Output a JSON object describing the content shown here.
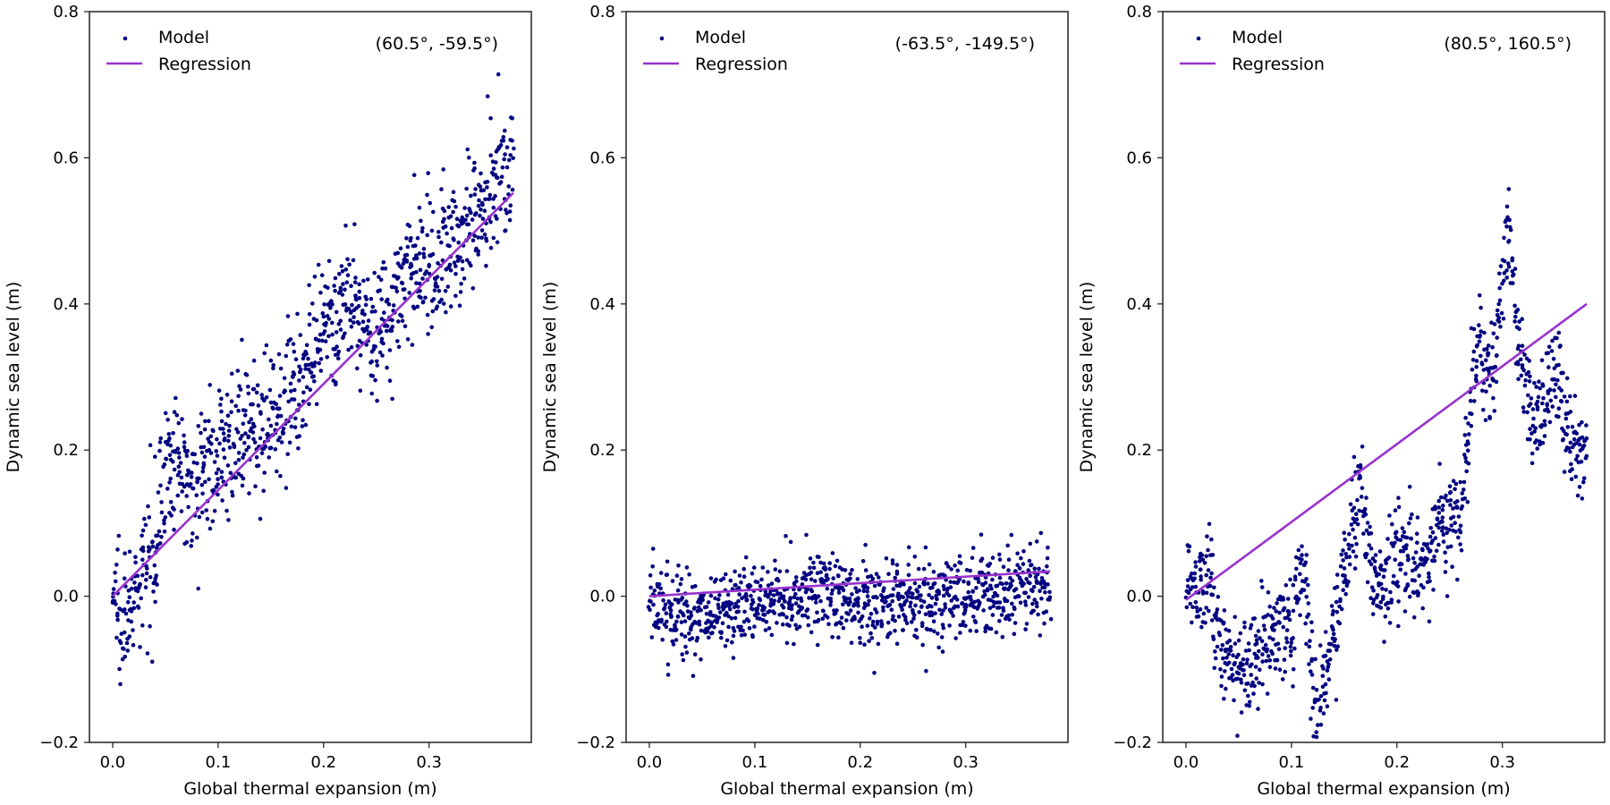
{
  "figure": {
    "colors": {
      "model": "#000080",
      "regression": "#9932CC",
      "axes": "#222222"
    }
  },
  "chart_data": [
    {
      "type": "scatter",
      "title": "",
      "annotation": "(60.5°, -59.5°)",
      "xlabel": "Global thermal expansion (m)",
      "ylabel": "Dynamic sea level (m)",
      "xlim": [
        -0.022,
        0.397
      ],
      "ylim": [
        -0.2,
        0.8
      ],
      "xticks": [
        0.0,
        0.1,
        0.2,
        0.3
      ],
      "xtick_labels": [
        "0.0",
        "0.1",
        "0.2",
        "0.3"
      ],
      "yticks": [
        -0.2,
        0.0,
        0.2,
        0.4,
        0.6,
        0.8
      ],
      "ytick_labels": [
        "−0.2",
        "0.0",
        "0.2",
        "0.4",
        "0.6",
        "0.8"
      ],
      "grid": false,
      "legend": {
        "position": "top-left",
        "entries": [
          "Model",
          "Regression"
        ]
      },
      "series": [
        {
          "name": "Model",
          "kind": "points",
          "n_points": 1000,
          "x_range": [
            0.0,
            0.38
          ],
          "trend": [
            [
              0.0,
              0.0
            ],
            [
              0.02,
              -0.02
            ],
            [
              0.04,
              0.08
            ],
            [
              0.05,
              0.18
            ],
            [
              0.08,
              0.16
            ],
            [
              0.1,
              0.2
            ],
            [
              0.14,
              0.23
            ],
            [
              0.18,
              0.3
            ],
            [
              0.22,
              0.4
            ],
            [
              0.25,
              0.36
            ],
            [
              0.28,
              0.44
            ],
            [
              0.32,
              0.47
            ],
            [
              0.35,
              0.54
            ],
            [
              0.38,
              0.6
            ]
          ],
          "spread": 0.045
        },
        {
          "name": "Regression",
          "kind": "line",
          "x": [
            0.0,
            0.38
          ],
          "y": [
            0.0,
            0.552
          ]
        }
      ]
    },
    {
      "type": "scatter",
      "title": "",
      "annotation": "(-63.5°, -149.5°)",
      "xlabel": "Global thermal expansion (m)",
      "ylabel": "Dynamic sea level (m)",
      "xlim": [
        -0.022,
        0.397
      ],
      "ylim": [
        -0.2,
        0.8
      ],
      "xticks": [
        0.0,
        0.1,
        0.2,
        0.3
      ],
      "xtick_labels": [
        "0.0",
        "0.1",
        "0.2",
        "0.3"
      ],
      "yticks": [
        -0.2,
        0.0,
        0.2,
        0.4,
        0.6,
        0.8
      ],
      "ytick_labels": [
        "−0.2",
        "0.0",
        "0.2",
        "0.4",
        "0.6",
        "0.8"
      ],
      "grid": false,
      "legend": {
        "position": "top-left",
        "entries": [
          "Model",
          "Regression"
        ]
      },
      "series": [
        {
          "name": "Model",
          "kind": "points",
          "n_points": 1000,
          "x_range": [
            0.0,
            0.38
          ],
          "trend": [
            [
              0.0,
              -0.01
            ],
            [
              0.05,
              -0.03
            ],
            [
              0.1,
              -0.01
            ],
            [
              0.15,
              0.01
            ],
            [
              0.2,
              -0.01
            ],
            [
              0.25,
              -0.01
            ],
            [
              0.3,
              0.0
            ],
            [
              0.35,
              0.01
            ],
            [
              0.38,
              0.02
            ]
          ],
          "spread": 0.03
        },
        {
          "name": "Regression",
          "kind": "line",
          "x": [
            0.0,
            0.38
          ],
          "y": [
            0.0,
            0.034
          ]
        }
      ]
    },
    {
      "type": "scatter",
      "title": "",
      "annotation": "(80.5°, 160.5°)",
      "xlabel": "Global thermal expansion (m)",
      "ylabel": "Dynamic sea level (m)",
      "xlim": [
        -0.022,
        0.397
      ],
      "ylim": [
        -0.2,
        0.8
      ],
      "xticks": [
        0.0,
        0.1,
        0.2,
        0.3
      ],
      "xtick_labels": [
        "0.0",
        "0.1",
        "0.2",
        "0.3"
      ],
      "yticks": [
        -0.2,
        0.0,
        0.2,
        0.4,
        0.6,
        0.8
      ],
      "ytick_labels": [
        "−0.2",
        "0.0",
        "0.2",
        "0.4",
        "0.6",
        "0.8"
      ],
      "grid": false,
      "legend": {
        "position": "top-left",
        "entries": [
          "Model",
          "Regression"
        ]
      },
      "series": [
        {
          "name": "Model",
          "kind": "points",
          "n_points": 1000,
          "x_range": [
            0.0,
            0.38
          ],
          "trend": [
            [
              0.0,
              0.02
            ],
            [
              0.02,
              0.03
            ],
            [
              0.035,
              -0.08
            ],
            [
              0.06,
              -0.1
            ],
            [
              0.08,
              -0.05
            ],
            [
              0.1,
              -0.05
            ],
            [
              0.11,
              0.05
            ],
            [
              0.125,
              -0.17
            ],
            [
              0.14,
              -0.05
            ],
            [
              0.15,
              0.05
            ],
            [
              0.165,
              0.15
            ],
            [
              0.18,
              0.0
            ],
            [
              0.2,
              0.06
            ],
            [
              0.225,
              0.03
            ],
            [
              0.24,
              0.1
            ],
            [
              0.26,
              0.1
            ],
            [
              0.275,
              0.35
            ],
            [
              0.29,
              0.3
            ],
            [
              0.305,
              0.5
            ],
            [
              0.315,
              0.35
            ],
            [
              0.33,
              0.22
            ],
            [
              0.35,
              0.3
            ],
            [
              0.37,
              0.19
            ],
            [
              0.38,
              0.2
            ]
          ],
          "spread": 0.035
        },
        {
          "name": "Regression",
          "kind": "line",
          "x": [
            0.0,
            0.38
          ],
          "y": [
            -0.005,
            0.4
          ]
        }
      ]
    }
  ]
}
